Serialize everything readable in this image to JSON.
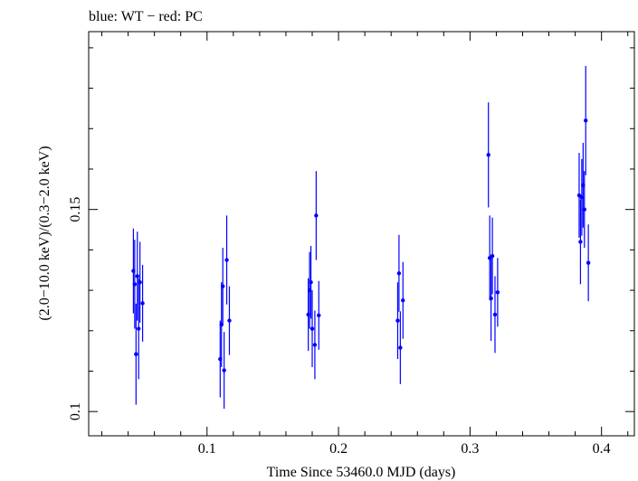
{
  "chart_data": {
    "type": "scatter",
    "title": "blue: WT − red: PC",
    "xlabel": "Time Since 53460.0 MJD (days)",
    "ylabel": "(2.0−10.0 keV)/(0.3−2.0 keV)",
    "xlim": [
      0.01,
      0.425
    ],
    "ylim": [
      0.094,
      0.194
    ],
    "x_ticks": [
      0.1,
      0.2,
      0.3,
      0.4
    ],
    "x_tick_labels": [
      "0.1",
      "0.2",
      "0.3",
      "0.4"
    ],
    "y_ticks": [
      0.1,
      0.15
    ],
    "y_tick_labels": [
      "0.1",
      "0.15"
    ],
    "series": [
      {
        "name": "WT",
        "color": "#0000ff",
        "points": [
          {
            "x": 0.044,
            "y": 0.1348,
            "err": 0.0105
          },
          {
            "x": 0.045,
            "y": 0.1315,
            "err": 0.011
          },
          {
            "x": 0.046,
            "y": 0.1142,
            "err": 0.0125
          },
          {
            "x": 0.047,
            "y": 0.1335,
            "err": 0.011
          },
          {
            "x": 0.048,
            "y": 0.1205,
            "err": 0.0125
          },
          {
            "x": 0.049,
            "y": 0.132,
            "err": 0.01
          },
          {
            "x": 0.051,
            "y": 0.1268,
            "err": 0.0095
          },
          {
            "x": 0.11,
            "y": 0.113,
            "err": 0.0095
          },
          {
            "x": 0.111,
            "y": 0.1215,
            "err": 0.0105
          },
          {
            "x": 0.112,
            "y": 0.131,
            "err": 0.0095
          },
          {
            "x": 0.113,
            "y": 0.1102,
            "err": 0.0095
          },
          {
            "x": 0.115,
            "y": 0.1375,
            "err": 0.011
          },
          {
            "x": 0.117,
            "y": 0.1225,
            "err": 0.0085
          },
          {
            "x": 0.177,
            "y": 0.124,
            "err": 0.009
          },
          {
            "x": 0.178,
            "y": 0.13,
            "err": 0.0095
          },
          {
            "x": 0.179,
            "y": 0.132,
            "err": 0.009
          },
          {
            "x": 0.18,
            "y": 0.1205,
            "err": 0.0095
          },
          {
            "x": 0.182,
            "y": 0.1165,
            "err": 0.0085
          },
          {
            "x": 0.183,
            "y": 0.1485,
            "err": 0.011
          },
          {
            "x": 0.185,
            "y": 0.1238,
            "err": 0.0085
          },
          {
            "x": 0.245,
            "y": 0.1225,
            "err": 0.0095
          },
          {
            "x": 0.246,
            "y": 0.1342,
            "err": 0.0095
          },
          {
            "x": 0.247,
            "y": 0.1158,
            "err": 0.009
          },
          {
            "x": 0.249,
            "y": 0.1275,
            "err": 0.0095
          },
          {
            "x": 0.314,
            "y": 0.1635,
            "err": 0.013
          },
          {
            "x": 0.315,
            "y": 0.138,
            "err": 0.0105
          },
          {
            "x": 0.316,
            "y": 0.128,
            "err": 0.0105
          },
          {
            "x": 0.317,
            "y": 0.1385,
            "err": 0.0095
          },
          {
            "x": 0.319,
            "y": 0.124,
            "err": 0.0095
          },
          {
            "x": 0.321,
            "y": 0.1295,
            "err": 0.0085
          },
          {
            "x": 0.383,
            "y": 0.1535,
            "err": 0.0105
          },
          {
            "x": 0.384,
            "y": 0.142,
            "err": 0.0105
          },
          {
            "x": 0.385,
            "y": 0.153,
            "err": 0.0095
          },
          {
            "x": 0.386,
            "y": 0.156,
            "err": 0.0105
          },
          {
            "x": 0.387,
            "y": 0.15,
            "err": 0.0095
          },
          {
            "x": 0.388,
            "y": 0.172,
            "err": 0.0135
          },
          {
            "x": 0.39,
            "y": 0.1368,
            "err": 0.0095
          }
        ]
      }
    ]
  }
}
